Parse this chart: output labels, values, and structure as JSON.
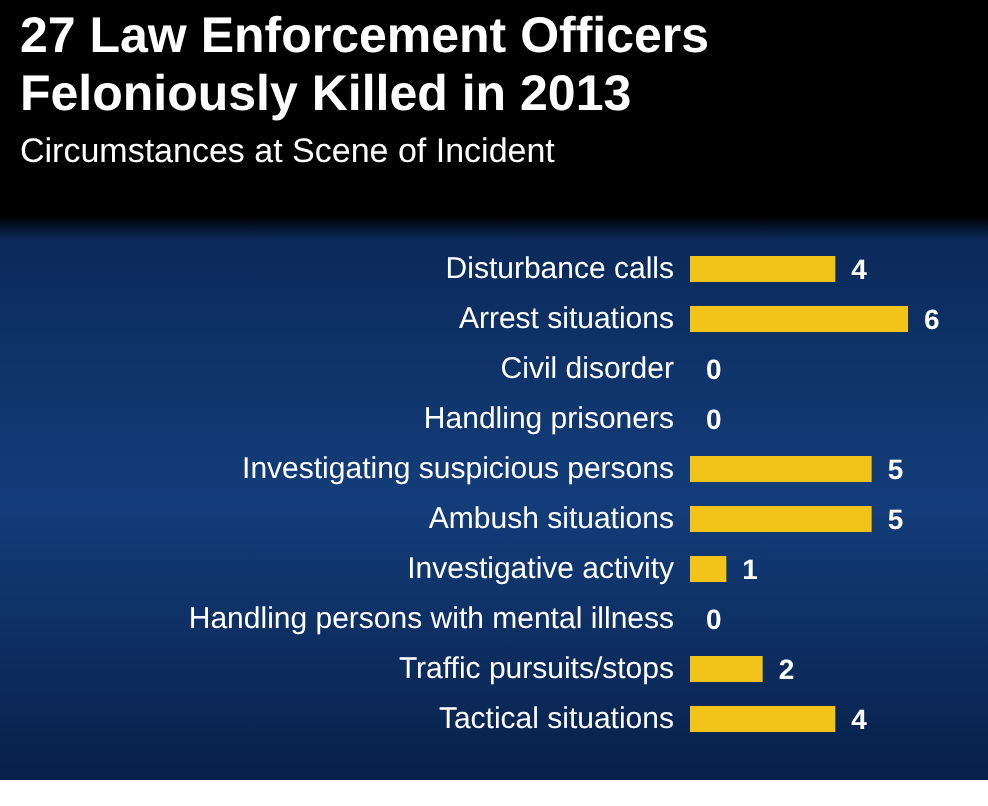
{
  "chart_data": {
    "type": "bar",
    "orientation": "horizontal",
    "title": "27 Law Enforcement Officers Feloniously Killed in 2013",
    "subtitle": "Circumstances at Scene of Incident",
    "categories": [
      "Disturbance calls",
      "Arrest situations",
      "Civil disorder",
      "Handling prisoners",
      "Investigating suspicious persons",
      "Ambush situations",
      "Investigative activity",
      "Handling persons with mental illness",
      "Traffic pursuits/stops",
      "Tactical situations"
    ],
    "values": [
      4,
      6,
      0,
      0,
      5,
      5,
      1,
      0,
      2,
      4
    ],
    "color": "#f2c318",
    "data_labels": true
  }
}
